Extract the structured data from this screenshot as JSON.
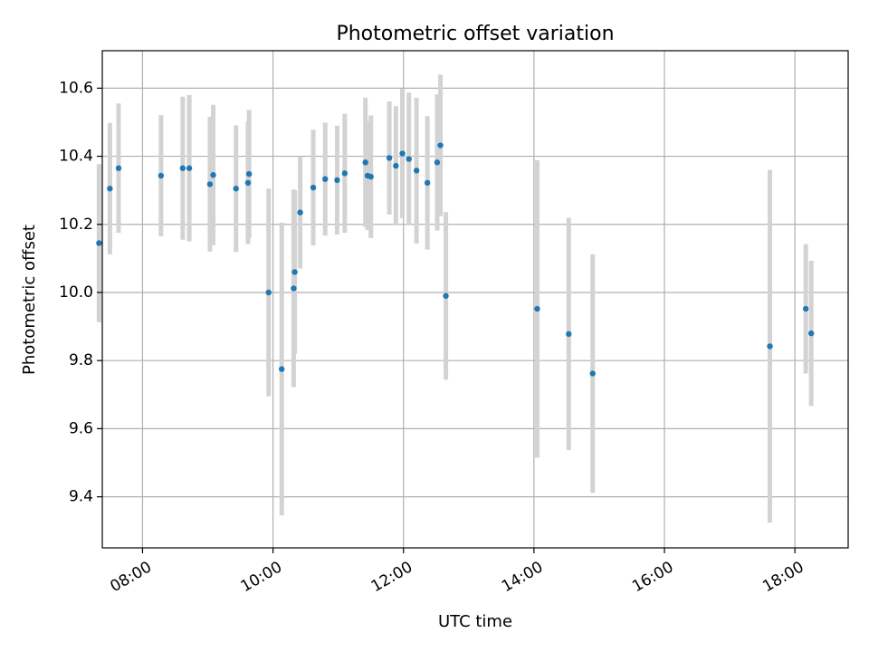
{
  "chart_data": {
    "type": "scatter",
    "title": "Photometric offset variation",
    "xlabel": "UTC time",
    "ylabel": "Photometric offset",
    "x_axis_type": "time",
    "xlim": [
      "07:23",
      "18:49"
    ],
    "ylim": [
      9.25,
      10.71
    ],
    "grid": true,
    "x_ticks": [
      "08:00",
      "10:00",
      "12:00",
      "14:00",
      "16:00",
      "18:00"
    ],
    "y_ticks": [
      "9.4",
      "9.6",
      "9.8",
      "10.0",
      "10.2",
      "10.4",
      "10.6"
    ],
    "colors": {
      "point": "#1f77b4",
      "errorbar": "#d3d3d3",
      "grid": "#b0b0b0"
    },
    "points": [
      {
        "x": "07:20",
        "y": 10.145,
        "yerr": 0.232
      },
      {
        "x": "07:30",
        "y": 10.305,
        "yerr": 0.193
      },
      {
        "x": "07:38",
        "y": 10.365,
        "yerr": 0.19
      },
      {
        "x": "08:17",
        "y": 10.343,
        "yerr": 0.178
      },
      {
        "x": "08:37",
        "y": 10.365,
        "yerr": 0.21
      },
      {
        "x": "08:43",
        "y": 10.365,
        "yerr": 0.215
      },
      {
        "x": "09:02",
        "y": 10.318,
        "yerr": 0.198
      },
      {
        "x": "09:05",
        "y": 10.345,
        "yerr": 0.206
      },
      {
        "x": "09:26",
        "y": 10.305,
        "yerr": 0.186
      },
      {
        "x": "09:37",
        "y": 10.322,
        "yerr": 0.18
      },
      {
        "x": "09:38",
        "y": 10.348,
        "yerr": 0.188
      },
      {
        "x": "09:56",
        "y": 10.0,
        "yerr": 0.305
      },
      {
        "x": "10:08",
        "y": 9.775,
        "yerr": 0.43
      },
      {
        "x": "10:19",
        "y": 10.012,
        "yerr": 0.29
      },
      {
        "x": "10:20",
        "y": 10.06,
        "yerr": 0.24
      },
      {
        "x": "10:25",
        "y": 10.235,
        "yerr": 0.165
      },
      {
        "x": "10:37",
        "y": 10.308,
        "yerr": 0.17
      },
      {
        "x": "10:48",
        "y": 10.333,
        "yerr": 0.166
      },
      {
        "x": "10:59",
        "y": 10.33,
        "yerr": 0.16
      },
      {
        "x": "11:06",
        "y": 10.35,
        "yerr": 0.175
      },
      {
        "x": "11:25",
        "y": 10.382,
        "yerr": 0.19
      },
      {
        "x": "11:27",
        "y": 10.343,
        "yerr": 0.16
      },
      {
        "x": "11:30",
        "y": 10.34,
        "yerr": 0.18
      },
      {
        "x": "11:47",
        "y": 10.395,
        "yerr": 0.166
      },
      {
        "x": "11:53",
        "y": 10.372,
        "yerr": 0.175
      },
      {
        "x": "11:59",
        "y": 10.408,
        "yerr": 0.19
      },
      {
        "x": "12:05",
        "y": 10.392,
        "yerr": 0.195
      },
      {
        "x": "12:12",
        "y": 10.358,
        "yerr": 0.214
      },
      {
        "x": "12:22",
        "y": 10.322,
        "yerr": 0.196
      },
      {
        "x": "12:31",
        "y": 10.382,
        "yerr": 0.2
      },
      {
        "x": "12:34",
        "y": 10.432,
        "yerr": 0.208
      },
      {
        "x": "12:39",
        "y": 9.99,
        "yerr": 0.246
      },
      {
        "x": "14:03",
        "y": 9.952,
        "yerr": 0.437
      },
      {
        "x": "14:32",
        "y": 9.878,
        "yerr": 0.341
      },
      {
        "x": "14:54",
        "y": 9.762,
        "yerr": 0.35
      },
      {
        "x": "17:37",
        "y": 9.842,
        "yerr": 0.518
      },
      {
        "x": "18:10",
        "y": 9.952,
        "yerr": 0.19
      },
      {
        "x": "18:15",
        "y": 9.88,
        "yerr": 0.213
      }
    ]
  }
}
